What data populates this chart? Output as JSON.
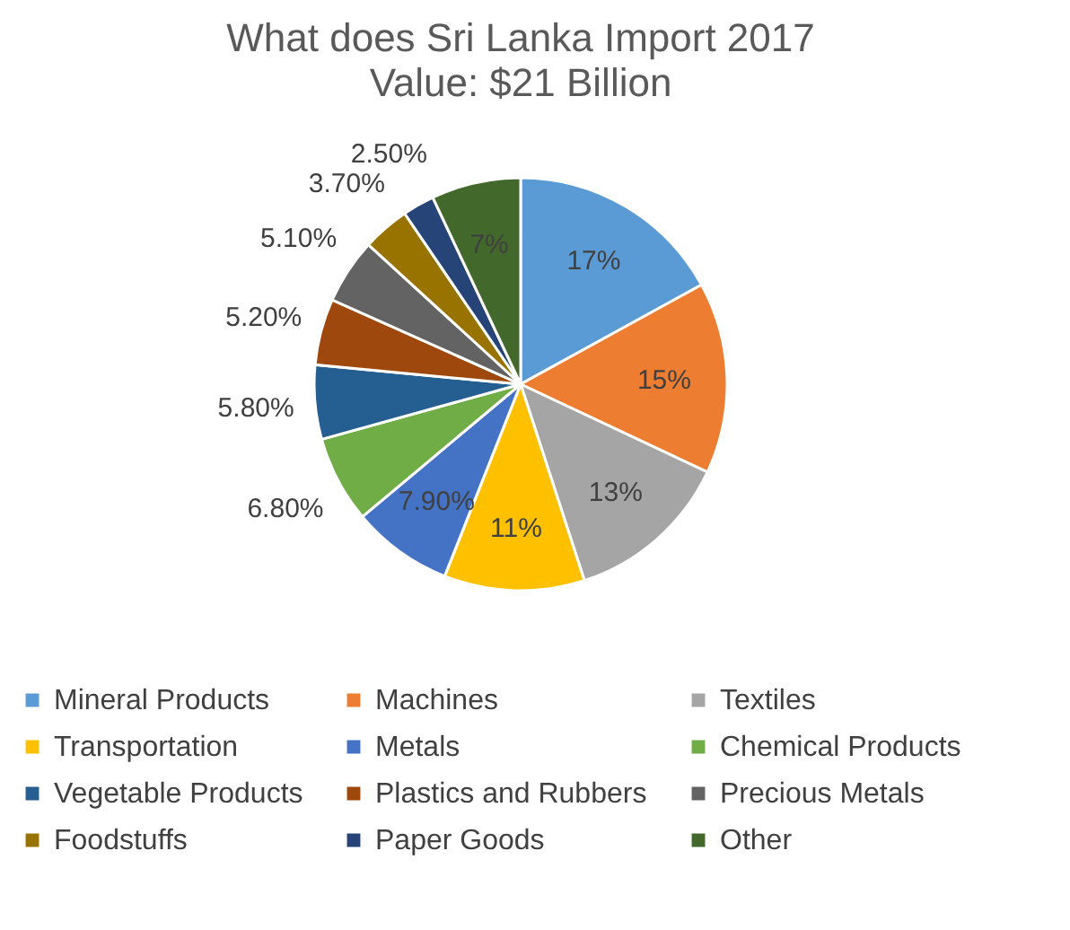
{
  "chart_data": {
    "type": "pie",
    "title": "What does Sri Lanka Import 2017",
    "subtitle": "Value:  $21 Billion",
    "categories": [
      "Mineral Products",
      "Machines",
      "Textiles",
      "Transportation",
      "Metals",
      "Chemical Products",
      "Vegetable Products",
      "Plastics and Rubbers",
      "Precious Metals",
      "Foodstuffs",
      "Paper Goods",
      "Other"
    ],
    "values": [
      17,
      15,
      13,
      11,
      7.9,
      6.8,
      5.8,
      5.2,
      5.1,
      3.7,
      2.5,
      7
    ],
    "value_labels": [
      "17%",
      "15%",
      "13%",
      "11%",
      "7.90%",
      "6.80%",
      "5.80%",
      "5.20%",
      "5.10%",
      "3.70%",
      "2.50%",
      "7%"
    ],
    "colors": [
      "#5b9bd5",
      "#ed7d31",
      "#a5a5a5",
      "#ffc000",
      "#4472c4",
      "#70ad47",
      "#255e91",
      "#9e480e",
      "#636363",
      "#997300",
      "#264478",
      "#43682b"
    ],
    "legend": "bottom"
  }
}
